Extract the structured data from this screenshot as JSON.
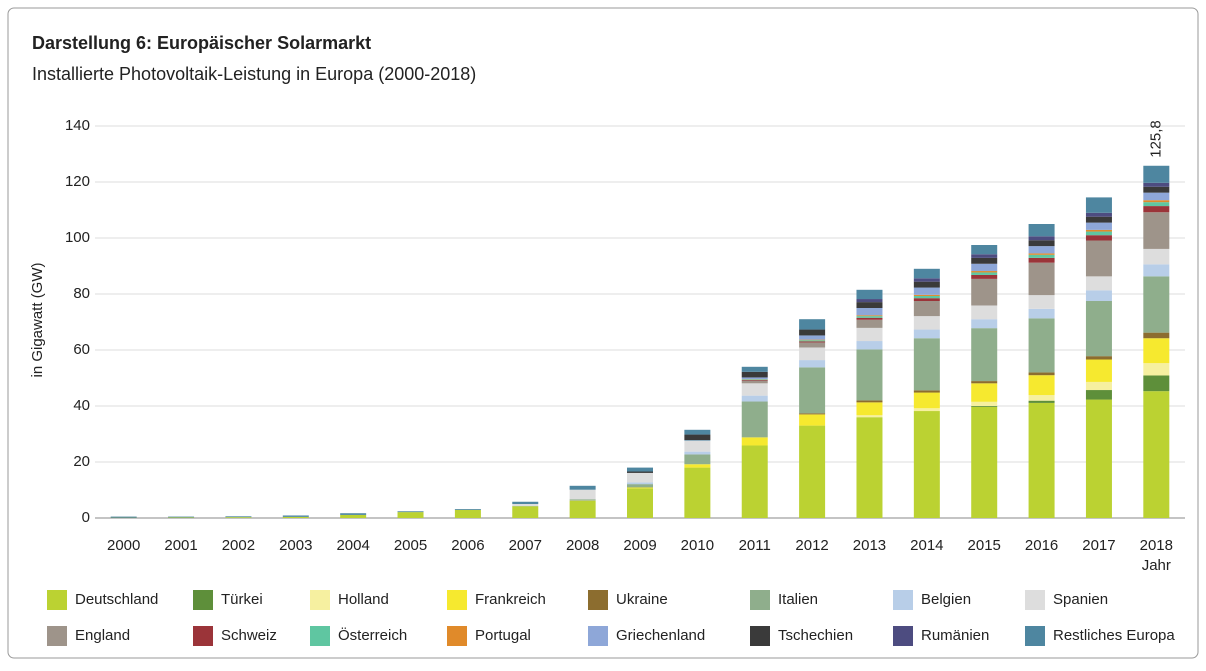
{
  "chart_data": {
    "type": "stacked_bar",
    "title": "Darstellung 6: Europäischer Solarmarkt",
    "subtitle": "Installierte Photovoltaik-Leistung in Europa (2000-2018)",
    "y_label": "in Gigawatt (GW)",
    "x_label": "Jahr",
    "annotation": "125,8",
    "categories": [
      "2000",
      "2001",
      "2002",
      "2003",
      "2004",
      "2005",
      "2006",
      "2007",
      "2008",
      "2009",
      "2010",
      "2011",
      "2012",
      "2013",
      "2014",
      "2015",
      "2016",
      "2017",
      "2018"
    ],
    "ylim": [
      0,
      140
    ],
    "yticks": [
      0,
      20,
      40,
      60,
      80,
      100,
      120,
      140
    ],
    "grid": true,
    "legend": "bottom",
    "series": [
      {
        "name": "Deutschland",
        "color": "#bbd232",
        "values": [
          0.1,
          0.2,
          0.3,
          0.4,
          1.1,
          2.1,
          2.9,
          4.2,
          6.1,
          10.6,
          18.0,
          25.9,
          33.0,
          36.0,
          38.2,
          39.7,
          41.1,
          42.3,
          45.3
        ]
      },
      {
        "name": "Türkei",
        "color": "#5e8f3a",
        "values": [
          0,
          0,
          0,
          0,
          0,
          0,
          0,
          0,
          0,
          0,
          0,
          0,
          0,
          0,
          0,
          0.3,
          0.8,
          3.4,
          5.6
        ]
      },
      {
        "name": "Holland",
        "color": "#f6f0a0",
        "values": [
          0,
          0,
          0,
          0,
          0,
          0,
          0,
          0,
          0,
          0,
          0,
          0,
          0,
          0.7,
          1.0,
          1.5,
          2.0,
          2.9,
          4.4
        ]
      },
      {
        "name": "Frankreich",
        "color": "#f6e92f",
        "values": [
          0,
          0,
          0,
          0,
          0,
          0,
          0,
          0,
          0.1,
          0.3,
          1.2,
          2.9,
          4.0,
          4.6,
          5.6,
          6.6,
          7.1,
          8.0,
          8.9
        ]
      },
      {
        "name": "Ukraine",
        "color": "#8c6d2f",
        "values": [
          0,
          0,
          0,
          0,
          0,
          0,
          0,
          0,
          0,
          0,
          0,
          0,
          0.4,
          0.7,
          0.8,
          0.8,
          1.0,
          1.2,
          2.0
        ]
      },
      {
        "name": "Italien",
        "color": "#8fae8c",
        "values": [
          0,
          0,
          0,
          0,
          0,
          0,
          0,
          0.1,
          0.5,
          1.2,
          3.5,
          12.8,
          16.4,
          18.2,
          18.6,
          18.9,
          19.3,
          19.7,
          20.1
        ]
      },
      {
        "name": "Belgien",
        "color": "#b8cee8",
        "values": [
          0,
          0,
          0,
          0,
          0,
          0,
          0,
          0,
          0,
          0.6,
          1.0,
          2.1,
          2.6,
          3.0,
          3.1,
          3.2,
          3.4,
          3.8,
          4.3
        ]
      },
      {
        "name": "Spanien",
        "color": "#dddddd",
        "values": [
          0,
          0,
          0,
          0,
          0,
          0,
          0,
          0.7,
          3.4,
          3.4,
          3.8,
          4.4,
          4.5,
          4.7,
          4.8,
          4.9,
          4.9,
          5.0,
          5.5
        ]
      },
      {
        "name": "England",
        "color": "#9e948a",
        "values": [
          0,
          0,
          0,
          0,
          0,
          0,
          0,
          0,
          0,
          0,
          0,
          1.0,
          1.8,
          2.9,
          5.4,
          9.5,
          11.6,
          12.8,
          13.1
        ]
      },
      {
        "name": "Schweiz",
        "color": "#9b3439",
        "values": [
          0,
          0,
          0,
          0,
          0,
          0,
          0,
          0,
          0,
          0,
          0,
          0.2,
          0.4,
          0.7,
          1.0,
          1.4,
          1.7,
          1.9,
          2.2
        ]
      },
      {
        "name": "Österreich",
        "color": "#5fc6a1",
        "values": [
          0,
          0,
          0,
          0,
          0,
          0,
          0,
          0,
          0,
          0,
          0.1,
          0.2,
          0.4,
          0.6,
          0.8,
          0.9,
          1.1,
          1.3,
          1.4
        ]
      },
      {
        "name": "Portugal",
        "color": "#e08a2a",
        "values": [
          0,
          0,
          0,
          0,
          0,
          0,
          0,
          0,
          0,
          0,
          0,
          0.1,
          0.2,
          0.3,
          0.4,
          0.5,
          0.5,
          0.6,
          0.7
        ]
      },
      {
        "name": "Griechenland",
        "color": "#8ea7d8",
        "values": [
          0,
          0,
          0,
          0,
          0,
          0,
          0,
          0,
          0,
          0,
          0.2,
          0.6,
          1.5,
          2.6,
          2.6,
          2.6,
          2.6,
          2.6,
          2.7
        ]
      },
      {
        "name": "Tschechien",
        "color": "#3a3a3a",
        "values": [
          0,
          0,
          0,
          0,
          0,
          0,
          0,
          0,
          0,
          0.5,
          2.0,
          2.0,
          2.1,
          2.1,
          2.1,
          2.1,
          2.1,
          2.1,
          2.1
        ]
      },
      {
        "name": "Rumänien",
        "color": "#4d4c80",
        "values": [
          0,
          0,
          0,
          0,
          0,
          0,
          0,
          0,
          0,
          0,
          0,
          0,
          0,
          1.1,
          1.2,
          1.3,
          1.4,
          1.4,
          1.4
        ]
      },
      {
        "name": "Restliches Europa",
        "color": "#4e86a0",
        "values": [
          0.4,
          0.3,
          0.3,
          0.5,
          0.6,
          0.3,
          0.3,
          0.8,
          1.4,
          1.4,
          1.7,
          1.8,
          3.7,
          3.3,
          3.4,
          3.3,
          4.4,
          5.5,
          6.1
        ]
      }
    ]
  }
}
